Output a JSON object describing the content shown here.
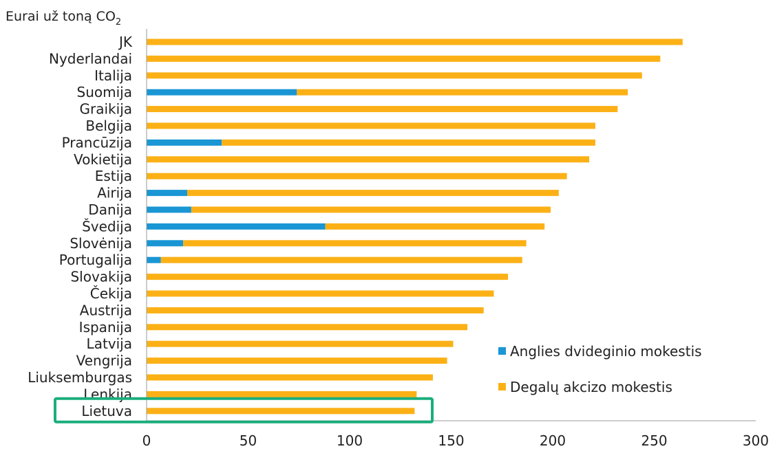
{
  "chart_data": {
    "type": "bar",
    "orientation": "horizontal",
    "stacked": true,
    "ylabel": "Eurai už toną CO",
    "ylabel_subscript": "2",
    "categories": [
      "JK",
      "Nyderlandai",
      "Italija",
      "Suomija",
      "Graikija",
      "Belgija",
      "Prancūzija",
      "Vokietija",
      "Estija",
      "Airija",
      "Danija",
      "Švedija",
      "Slovėnija",
      "Portugalija",
      "Slovakija",
      "Čekija",
      "Austrija",
      "Ispanija",
      "Latvija",
      "Vengrija",
      "Liuksemburgas",
      "Lenkija",
      "Lietuva"
    ],
    "series": [
      {
        "name": "Anglies dvideginio mokestis",
        "color": "#1a96d4",
        "values": [
          0,
          0,
          0,
          74,
          0,
          0,
          37,
          0,
          0,
          20,
          22,
          88,
          18,
          7,
          0,
          0,
          0,
          0,
          0,
          0,
          0,
          0,
          0
        ]
      },
      {
        "name": "Degalų akcizo mokestis",
        "color": "#fbb116",
        "values": [
          264,
          253,
          244,
          163,
          232,
          221,
          184,
          218,
          207,
          183,
          177,
          108,
          169,
          178,
          178,
          171,
          166,
          158,
          151,
          148,
          141,
          133,
          132
        ]
      }
    ],
    "xlim": [
      0,
      300
    ],
    "xticks": [
      "0",
      "50",
      "100",
      "150",
      "200",
      "250",
      "300"
    ],
    "grid": false,
    "legend_position": "bottom-right",
    "highlight": {
      "category": "Lietuva",
      "color": "#1aae7c"
    }
  }
}
